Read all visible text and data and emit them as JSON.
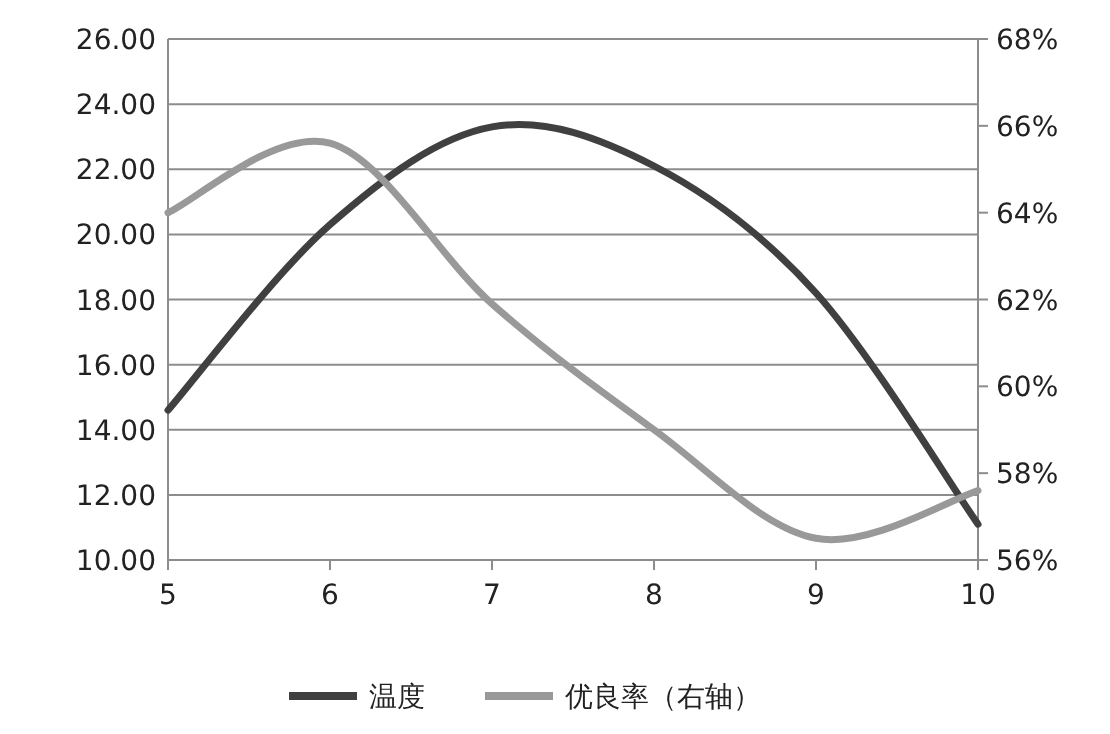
{
  "chart_data": {
    "type": "line",
    "x": [
      5,
      6,
      7,
      8,
      9,
      10
    ],
    "xlim": [
      5,
      10
    ],
    "xticks": [
      5,
      6,
      7,
      8,
      9,
      10
    ],
    "ylim": [
      10,
      26
    ],
    "yticks": [
      {
        "value": 10,
        "label": "10.00"
      },
      {
        "value": 12,
        "label": "12.00"
      },
      {
        "value": 14,
        "label": "14.00"
      },
      {
        "value": 16,
        "label": "16.00"
      },
      {
        "value": 18,
        "label": "18.00"
      },
      {
        "value": 20,
        "label": "20.00"
      },
      {
        "value": 22,
        "label": "22.00"
      },
      {
        "value": 24,
        "label": "24.00"
      },
      {
        "value": 26,
        "label": "26.00"
      }
    ],
    "y2lim": [
      56,
      68
    ],
    "y2ticks": [
      {
        "value": 56,
        "label": "56%"
      },
      {
        "value": 58,
        "label": "58%"
      },
      {
        "value": 60,
        "label": "60%"
      },
      {
        "value": 62,
        "label": "62%"
      },
      {
        "value": 64,
        "label": "64%"
      },
      {
        "value": 66,
        "label": "66%"
      },
      {
        "value": 68,
        "label": "68%"
      }
    ],
    "series": [
      {
        "name": "温度",
        "color": "#404040",
        "values": [
          14.6,
          20.3,
          23.3,
          22.1,
          18.2,
          11.1
        ]
      },
      {
        "name": "优良率（右轴）",
        "color": "#999999",
        "axis": "y2",
        "values": [
          64.0,
          65.6,
          61.9,
          59.0,
          56.5,
          57.6
        ]
      }
    ],
    "grid": "y",
    "legend": "bottom",
    "marker": "none",
    "line_style": "solid"
  }
}
